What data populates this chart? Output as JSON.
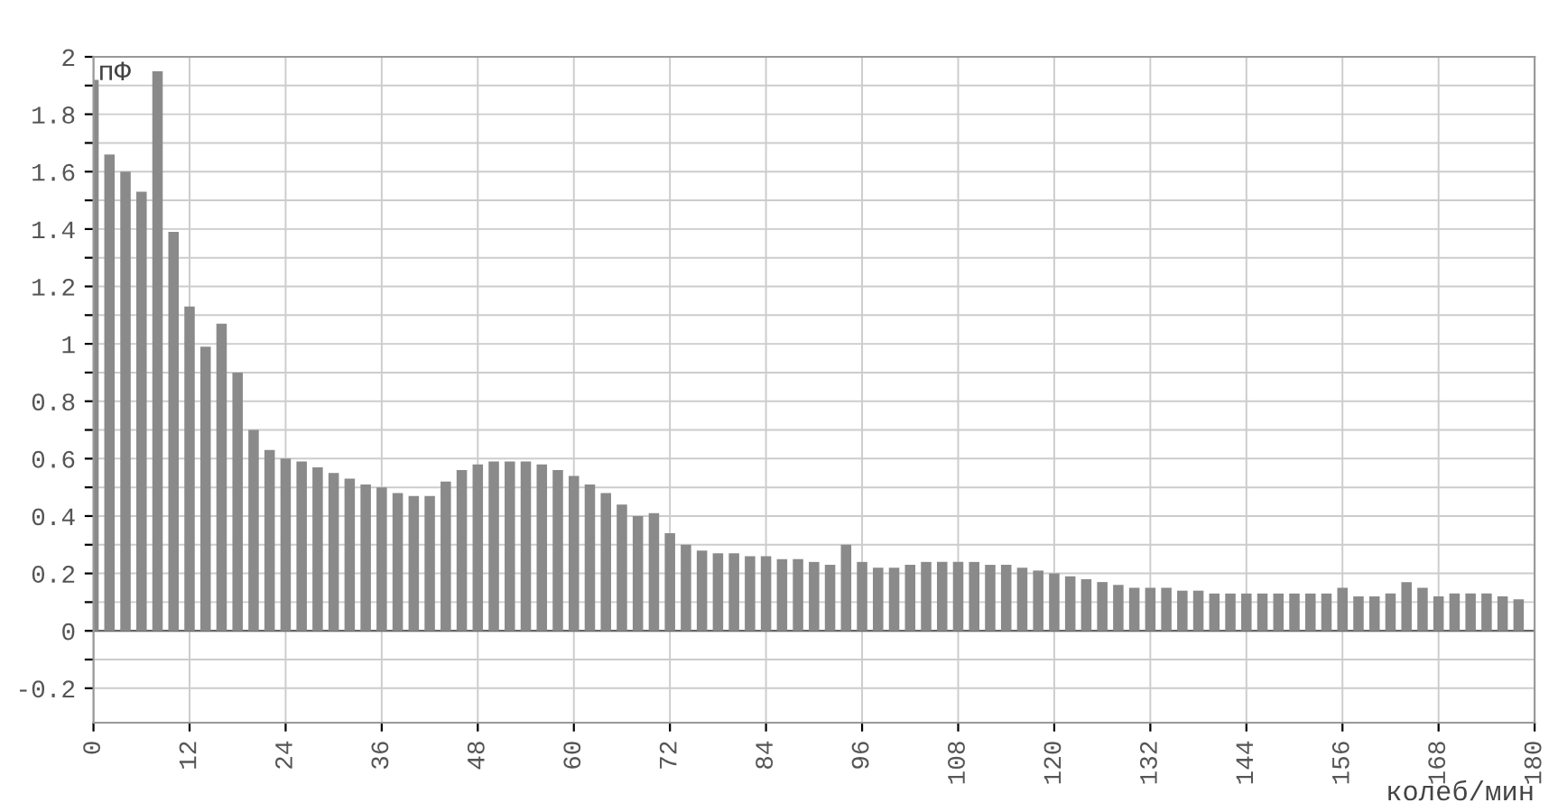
{
  "chart_data": {
    "type": "bar",
    "xlabel": "колеб/мин",
    "ylabel": "пФ",
    "x": [
      0,
      2,
      4,
      6,
      8,
      10,
      12,
      14,
      16,
      18,
      20,
      22,
      24,
      26,
      28,
      30,
      32,
      34,
      36,
      38,
      40,
      42,
      44,
      46,
      48,
      50,
      52,
      54,
      56,
      58,
      60,
      62,
      64,
      66,
      68,
      70,
      72,
      74,
      76,
      78,
      80,
      82,
      84,
      86,
      88,
      90,
      92,
      94,
      96,
      98,
      100,
      102,
      104,
      106,
      108,
      110,
      112,
      114,
      116,
      118,
      120,
      122,
      124,
      126,
      128,
      130,
      132,
      134,
      136,
      138,
      140,
      142,
      144,
      146,
      148,
      150,
      152,
      154,
      156,
      158,
      160,
      162,
      164,
      166,
      168,
      170,
      172,
      174,
      176,
      178
    ],
    "values": [
      1.92,
      1.66,
      1.6,
      1.53,
      1.95,
      1.39,
      1.13,
      0.99,
      1.07,
      0.9,
      0.7,
      0.63,
      0.6,
      0.59,
      0.57,
      0.55,
      0.53,
      0.51,
      0.5,
      0.48,
      0.47,
      0.47,
      0.52,
      0.56,
      0.58,
      0.59,
      0.59,
      0.59,
      0.58,
      0.56,
      0.54,
      0.51,
      0.48,
      0.44,
      0.4,
      0.41,
      0.34,
      0.3,
      0.28,
      0.27,
      0.27,
      0.26,
      0.26,
      0.25,
      0.25,
      0.24,
      0.23,
      0.3,
      0.24,
      0.22,
      0.22,
      0.23,
      0.24,
      0.24,
      0.24,
      0.24,
      0.23,
      0.23,
      0.22,
      0.21,
      0.2,
      0.19,
      0.18,
      0.17,
      0.16,
      0.15,
      0.15,
      0.15,
      0.14,
      0.14,
      0.13,
      0.13,
      0.13,
      0.13,
      0.13,
      0.13,
      0.13,
      0.13,
      0.15,
      0.12,
      0.12,
      0.13,
      0.17,
      0.15,
      0.12,
      0.13,
      0.13,
      0.13,
      0.12,
      0.11
    ],
    "color": "#8a8a8a",
    "xlim": [
      0,
      180
    ],
    "xticks": [
      0,
      12,
      24,
      36,
      48,
      60,
      72,
      84,
      96,
      108,
      120,
      132,
      144,
      156,
      168,
      180
    ],
    "ylim": [
      -0.32,
      2
    ],
    "yticks": [
      {
        "value": -0.2,
        "label": "-0.2"
      },
      {
        "value": -0.1,
        "label": null
      },
      0,
      {
        "value": 0.1,
        "label": null
      },
      0.2,
      {
        "value": 0.3,
        "label": null
      },
      0.4,
      {
        "value": 0.5,
        "label": null
      },
      0.6,
      {
        "value": 0.7,
        "label": null
      },
      0.8,
      {
        "value": 0.9,
        "label": null
      },
      1,
      {
        "value": 1.1,
        "label": null
      },
      1.2,
      {
        "value": 1.3,
        "label": null
      },
      1.4,
      {
        "value": 1.5,
        "label": null
      },
      1.6,
      {
        "value": 1.7,
        "label": null
      },
      1.8,
      {
        "value": 1.9,
        "label": null
      },
      2
    ],
    "grid": true
  }
}
